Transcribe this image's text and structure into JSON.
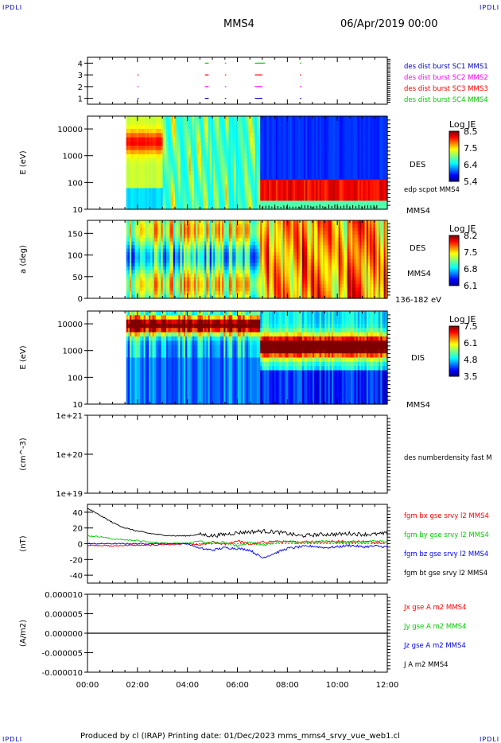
{
  "corner_labels": {
    "tl": "IPDLI",
    "tr": "IPDLI",
    "bl": "IPDLI",
    "br": "IPDLI"
  },
  "header": {
    "spacecraft": "MMS4",
    "datetime": "06/Apr/2019 00:00"
  },
  "footer": {
    "text": "Produced by cl (IRAP)   Printing date: 01/Dec/2023   mms_mms4_srvy_vue_web1.cl"
  },
  "colors": {
    "black": "#000000",
    "blue": "#0000ff",
    "magenta": "#ff00ff",
    "red": "#ff0000",
    "green": "#00cc00"
  },
  "chart_data": [
    {
      "type": "scatter",
      "panel": "burst",
      "y_ticks": [
        "1",
        "2",
        "3",
        "4"
      ],
      "ylim": [
        0.5,
        4.5
      ],
      "series": [
        {
          "name": "des dist burst SC1 MMS1",
          "color": "#0000cc",
          "y": 1,
          "x_intervals": [
            [
              2.0,
              2.02
            ],
            [
              4.7,
              4.85
            ],
            [
              5.5,
              5.55
            ],
            [
              6.7,
              7.0
            ],
            [
              8.5,
              8.55
            ]
          ]
        },
        {
          "name": "des dist burst SC2 MMS2",
          "color": "#ff00ff",
          "y": 2,
          "x_intervals": [
            [
              2.0,
              2.02
            ],
            [
              4.7,
              4.85
            ],
            [
              5.5,
              5.55
            ],
            [
              6.7,
              7.0
            ],
            [
              8.5,
              8.55
            ]
          ]
        },
        {
          "name": "des dist burst SC3 MMS3",
          "color": "#ff0000",
          "y": 3,
          "x_intervals": [
            [
              2.0,
              2.02
            ],
            [
              4.7,
              4.85
            ],
            [
              5.5,
              5.55
            ],
            [
              6.7,
              7.0
            ],
            [
              8.5,
              8.55
            ]
          ]
        },
        {
          "name": "des dist burst SC4 MMS4",
          "color": "#00cc00",
          "y": 4,
          "x_intervals": [
            [
              4.7,
              4.85
            ],
            [
              5.5,
              5.55
            ],
            [
              6.7,
              7.1
            ],
            [
              8.5,
              8.55
            ]
          ]
        }
      ]
    },
    {
      "type": "heatmap",
      "panel": "des_energy",
      "ylabel": "E (eV)",
      "y_ticks": [
        "10",
        "100",
        "1000",
        "10000"
      ],
      "ylim_log": [
        10,
        30000
      ],
      "right_label": "DES",
      "right_overlay": "edp scpot MMS4",
      "bottom_right": "MMS4",
      "colorbar": {
        "title": "Log JE",
        "ticks": [
          "8.5",
          "7.5",
          "6.4",
          "5.4"
        ],
        "range": [
          5.4,
          8.6
        ]
      }
    },
    {
      "type": "heatmap",
      "panel": "des_pitch",
      "ylabel": "a (deg)",
      "y_ticks": [
        "0",
        "50",
        "100",
        "150"
      ],
      "ylim": [
        0,
        180
      ],
      "right_label": "DES",
      "right_sub": "MMS4",
      "bottom_right": "136-182 eV",
      "colorbar": {
        "title": "Log JE",
        "ticks": [
          "8.2",
          "7.5",
          "6.8",
          "6.1"
        ],
        "range": [
          6.1,
          8.3
        ]
      }
    },
    {
      "type": "heatmap",
      "panel": "dis_energy",
      "ylabel": "E (eV)",
      "y_ticks": [
        "10",
        "100",
        "1000",
        "10000"
      ],
      "ylim_log": [
        10,
        30000
      ],
      "right_label": "DIS",
      "bottom_right": "MMS4",
      "colorbar": {
        "title": "Log JE",
        "ticks": [
          "7.5",
          "6.1",
          "4.8",
          "3.5"
        ],
        "range": [
          3.5,
          7.7
        ]
      }
    },
    {
      "type": "line",
      "panel": "density",
      "ylabel": "(cm^-3)",
      "y_ticks": [
        "1e+19",
        "1e+20",
        "1e+21"
      ],
      "series": [
        {
          "name": "des numberdensity fast M",
          "color": "#000000",
          "values": []
        }
      ]
    },
    {
      "type": "line",
      "panel": "fgm",
      "ylabel": "(nT)",
      "y_ticks": [
        "-40",
        "-20",
        "0",
        "20",
        "40"
      ],
      "ylim": [
        -50,
        50
      ],
      "x": [
        0,
        0.5,
        1,
        1.5,
        2,
        2.5,
        3,
        3.5,
        4,
        4.5,
        5,
        5.5,
        6,
        6.5,
        7,
        7.5,
        8,
        8.5,
        9,
        9.5,
        10,
        10.5,
        11,
        11.5,
        12
      ],
      "series": [
        {
          "name": "fgm bx gse srvy l2 MMS4",
          "color": "#ff0000",
          "values": [
            -2,
            -2,
            -3,
            -2,
            -2,
            -2,
            -1,
            -1,
            0,
            -2,
            2,
            -1,
            4,
            -1,
            2,
            3,
            2,
            2,
            3,
            2,
            3,
            2,
            3,
            2,
            2
          ]
        },
        {
          "name": "fgm by gse srvy l2 MMS4",
          "color": "#00cc00",
          "values": [
            10,
            9,
            6,
            5,
            4,
            2,
            1,
            1,
            1,
            3,
            0,
            2,
            -3,
            2,
            -2,
            2,
            3,
            2,
            2,
            3,
            2,
            3,
            2,
            3,
            3
          ]
        },
        {
          "name": "fgm bz gse srvy l2 MMS4",
          "color": "#0000ff",
          "values": [
            0,
            0,
            0,
            0,
            0,
            0,
            0,
            0,
            0,
            -6,
            -8,
            -5,
            -6,
            -8,
            -18,
            -12,
            -6,
            -4,
            -3,
            -5,
            -4,
            -2,
            -4,
            -3,
            -4
          ]
        },
        {
          "name": "fgm bt gse srvy l2 MMS4",
          "color": "#000000",
          "values": [
            45,
            36,
            27,
            20,
            16,
            13,
            11,
            10,
            10,
            12,
            10,
            12,
            14,
            15,
            16,
            15,
            13,
            10,
            11,
            12,
            12,
            13,
            12,
            12,
            13
          ]
        }
      ]
    },
    {
      "type": "line",
      "panel": "current",
      "ylabel": "(A/m2)",
      "y_ticks": [
        "-0.000010",
        "-0.000005",
        "0.000000",
        "0.000005",
        "0.000010"
      ],
      "ylim": [
        -1e-05,
        1e-05
      ],
      "x": [
        0,
        12
      ],
      "series": [
        {
          "name": "Jx gse A m2 MMS4",
          "color": "#ff0000",
          "values": [
            0,
            0
          ]
        },
        {
          "name": "Jy gse A m2 MMS4",
          "color": "#00cc00",
          "values": [
            0,
            0
          ]
        },
        {
          "name": "Jz gse A m2 MMS4",
          "color": "#0000ff",
          "values": [
            0,
            0
          ]
        },
        {
          "name": "J A m2 MMS4",
          "color": "#000000",
          "values": [
            0,
            0
          ]
        }
      ]
    }
  ],
  "x_axis": {
    "ticks": [
      "00:00",
      "02:00",
      "04:00",
      "06:00",
      "08:00",
      "10:00",
      "12:00"
    ],
    "hours": [
      0,
      12
    ]
  }
}
